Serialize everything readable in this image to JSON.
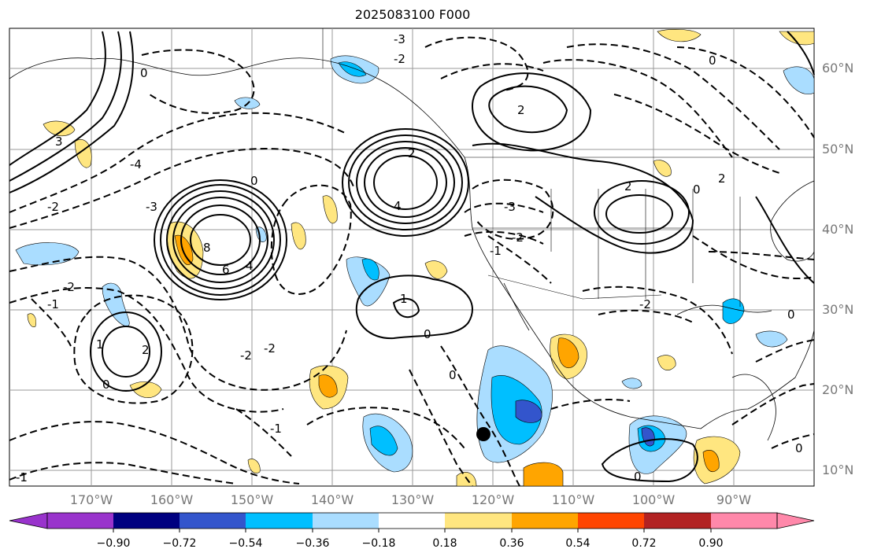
{
  "title": "2025083100 F000",
  "lat_labels": [
    "60°N",
    "50°N",
    "40°N",
    "30°N",
    "20°N",
    "10°N"
  ],
  "lon_labels": [
    "170°W",
    "160°W",
    "150°W",
    "140°W",
    "130°W",
    "120°W",
    "110°W",
    "100°W",
    "90°W"
  ],
  "colorbar": {
    "ticks": [
      "−0.90",
      "−0.72",
      "−0.54",
      "−0.36",
      "−0.18",
      "0.18",
      "0.36",
      "0.54",
      "0.72",
      "0.90"
    ],
    "colors": [
      "#9933cc",
      "#000080",
      "#3355cc",
      "#00bfff",
      "#aaddff",
      "#ffffff",
      "#ffe680",
      "#ffa500",
      "#ff4500",
      "#b22222",
      "#ff88aa"
    ]
  },
  "contour_labels": [
    "2",
    "4",
    "6",
    "8",
    "-1",
    "-2",
    "-3",
    "-4",
    "0",
    "1",
    "2",
    "3",
    "2",
    "-2",
    "-1",
    "0"
  ]
}
